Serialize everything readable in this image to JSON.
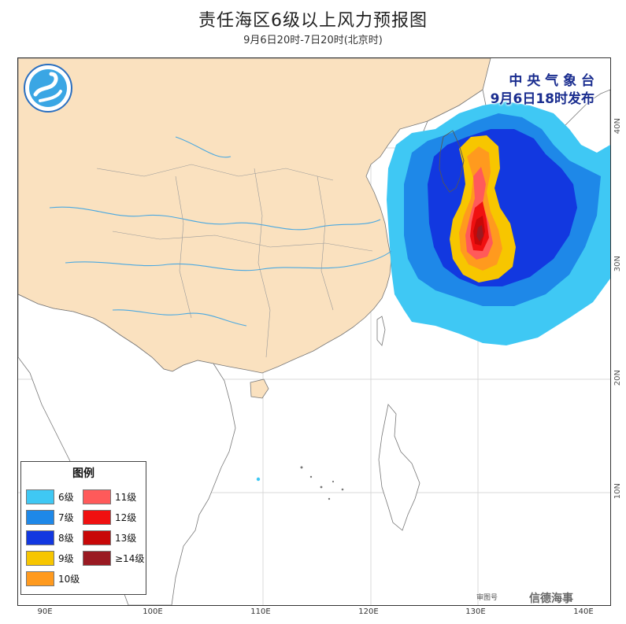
{
  "title": "责任海区6级以上风力预报图",
  "subtitle": "9月6日20时-7日20时(北京时)",
  "issuer": {
    "line1": "中 央 气 象 台",
    "line2": "9月6日18时发布"
  },
  "legend": {
    "title": "图例",
    "items": [
      {
        "label": "6级",
        "color": "#3fc8f4"
      },
      {
        "label": "7级",
        "color": "#1e88e8"
      },
      {
        "label": "8级",
        "color": "#1238e0"
      },
      {
        "label": "9级",
        "color": "#f7c600"
      },
      {
        "label": "10级",
        "color": "#ff9a1e"
      },
      {
        "label": "11级",
        "color": "#ff5a5a"
      },
      {
        "label": "12级",
        "color": "#f01010"
      },
      {
        "label": "13级",
        "color": "#c80808"
      },
      {
        "label": "≥14级",
        "color": "#9a1a22"
      }
    ]
  },
  "axes": {
    "x_ticks": [
      "90E",
      "100E",
      "110E",
      "120E",
      "130E",
      "140E"
    ],
    "y_ticks": [
      "40N",
      "30N",
      "20N",
      "10N"
    ]
  },
  "footer": {
    "review_label": "审图号",
    "watermark": "信德海事"
  },
  "colors": {
    "land": "#fae1bf",
    "sea": "#ffffff",
    "river": "#4aa8e0",
    "border": "#888888"
  }
}
